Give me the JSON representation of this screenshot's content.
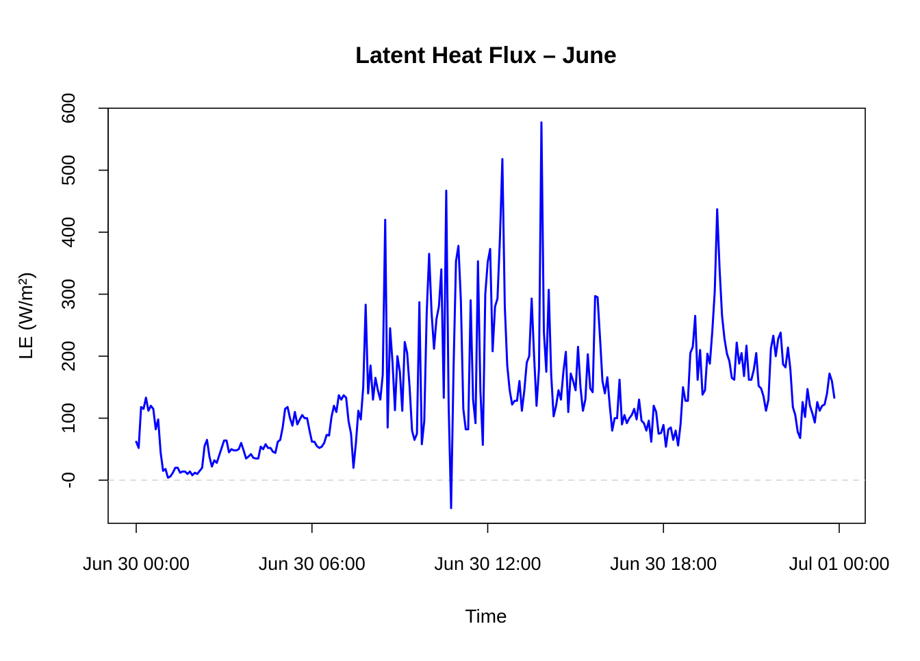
{
  "chart_data": {
    "type": "line",
    "title": "Latent Heat Flux – June",
    "xlabel": "Time",
    "ylabel": "LE (W/m²)",
    "x_ticks": [
      "Jun 30 00:00",
      "Jun 30 06:00",
      "Jun 30 12:00",
      "Jun 30 18:00",
      "Jul 01 00:00"
    ],
    "y_ticks": [
      "-0",
      "100",
      "200",
      "300",
      "400",
      "500",
      "600"
    ],
    "xlim": [
      "2023-06-30 00:00",
      "2023-07-01 00:00"
    ],
    "ylim": [
      -70,
      600
    ],
    "x_interval_minutes": 5,
    "reference_line": {
      "y": 0,
      "color": "#d3d3d3",
      "style": "dashed"
    },
    "grid": false,
    "series_color": "#0000ff",
    "series": [
      {
        "values": [
          62,
          52,
          118,
          115,
          133,
          112,
          120,
          115,
          82,
          98,
          45,
          15,
          18,
          4,
          6,
          12,
          20,
          20,
          12,
          14,
          14,
          10,
          14,
          8,
          12,
          10,
          15,
          20,
          55,
          65,
          38,
          22,
          32,
          28,
          40,
          52,
          64,
          64,
          45,
          50,
          48,
          48,
          50,
          60,
          48,
          35,
          38,
          42,
          36,
          35,
          35,
          54,
          50,
          58,
          52,
          52,
          46,
          44,
          62,
          65,
          85,
          115,
          118,
          100,
          88,
          110,
          90,
          98,
          105,
          100,
          100,
          80,
          62,
          62,
          55,
          52,
          54,
          60,
          73,
          72,
          102,
          120,
          110,
          137,
          130,
          137,
          133,
          95,
          75,
          20,
          60,
          112,
          98,
          150,
          283,
          140,
          185,
          130,
          165,
          145,
          130,
          170,
          420,
          85,
          245,
          190,
          113,
          200,
          175,
          112,
          223,
          205,
          150,
          80,
          65,
          75,
          287,
          58,
          95,
          270,
          365,
          270,
          212,
          260,
          280,
          340,
          133,
          467,
          120,
          -45,
          180,
          353,
          378,
          290,
          115,
          82,
          82,
          290,
          130,
          92,
          353,
          145,
          57,
          300,
          352,
          373,
          208,
          280,
          293,
          390,
          518,
          280,
          185,
          145,
          122,
          128,
          128,
          160,
          112,
          145,
          190,
          200,
          293,
          200,
          120,
          180,
          577,
          240,
          175,
          307,
          170,
          103,
          120,
          145,
          130,
          175,
          207,
          110,
          172,
          160,
          145,
          215,
          150,
          112,
          130,
          203,
          148,
          142,
          297,
          295,
          230,
          160,
          140,
          166,
          120,
          80,
          100,
          100,
          162,
          90,
          105,
          92,
          100,
          105,
          115,
          98,
          130,
          96,
          92,
          80,
          96,
          62,
          120,
          110,
          75,
          76,
          89,
          54,
          82,
          85,
          65,
          80,
          56,
          90,
          150,
          128,
          128,
          205,
          215,
          265,
          162,
          210,
          138,
          145,
          204,
          188,
          240,
          304,
          437,
          340,
          265,
          228,
          204,
          192,
          165,
          162,
          222,
          188,
          205,
          168,
          217,
          162,
          162,
          178,
          205,
          152,
          148,
          135,
          112,
          130,
          212,
          233,
          200,
          228,
          238,
          187,
          182,
          214,
          178,
          118,
          105,
          78,
          68,
          126,
          102,
          147,
          120,
          108,
          93,
          126,
          112,
          120,
          122,
          140,
          172,
          160,
          133
        ]
      }
    ]
  }
}
